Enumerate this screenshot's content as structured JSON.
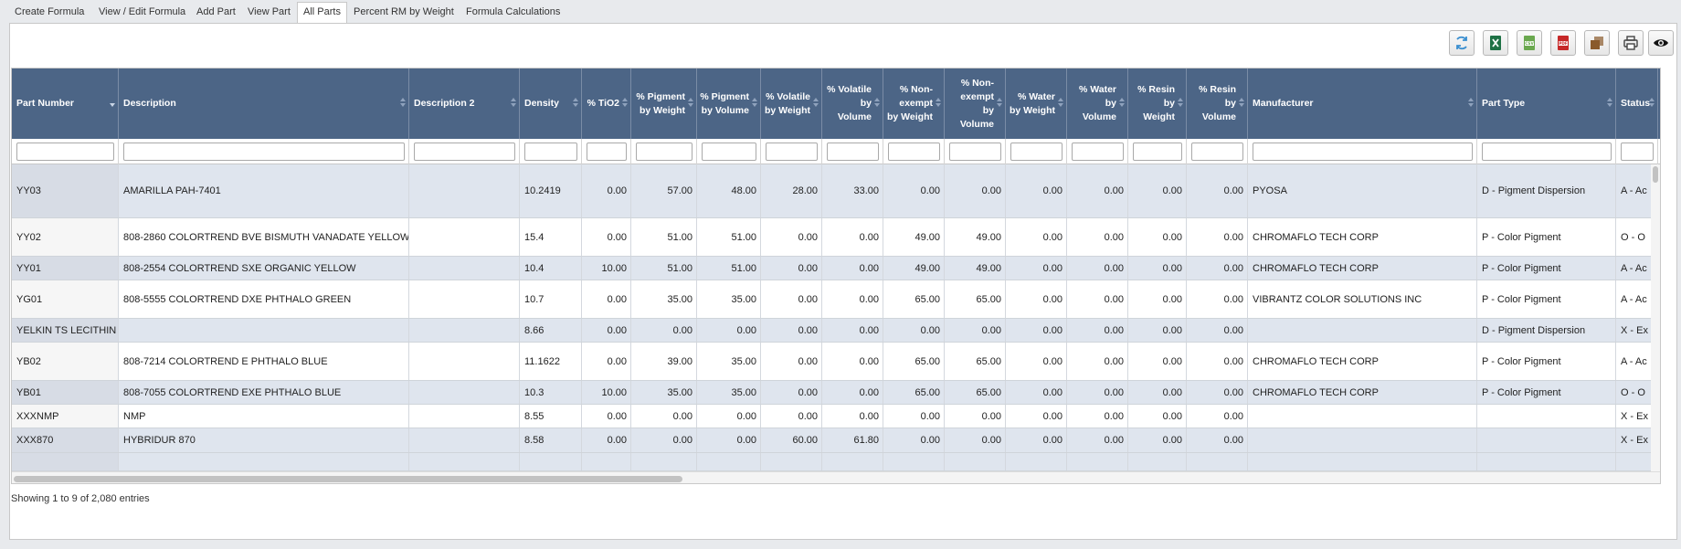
{
  "tabs": [
    {
      "label": "Create Formula",
      "active": false
    },
    {
      "label": "View / Edit Formula",
      "active": false
    },
    {
      "label": "Add Part",
      "active": false
    },
    {
      "label": "View Part",
      "active": false
    },
    {
      "label": "All Parts",
      "active": true
    },
    {
      "label": "Percent RM by Weight",
      "active": false
    },
    {
      "label": "Formula Calculations",
      "active": false
    }
  ],
  "toolbar": [
    {
      "name": "refresh-button",
      "icon": "refresh-icon",
      "color": "#3a8fd0"
    },
    {
      "name": "export-excel-button",
      "icon": "excel-icon",
      "color": "#1e7145"
    },
    {
      "name": "export-csv-button",
      "icon": "csv-icon",
      "color": "#6aa84f"
    },
    {
      "name": "export-pdf-button",
      "icon": "pdf-icon",
      "color": "#c62828"
    },
    {
      "name": "copy-button",
      "icon": "copy-icon",
      "color": "#8a5a2b"
    },
    {
      "name": "print-button",
      "icon": "print-icon",
      "color": "#444444"
    },
    {
      "name": "column-visibility-button",
      "icon": "eye-icon",
      "color": "#111111"
    }
  ],
  "table": {
    "columns": [
      {
        "key": "part_number",
        "label": "Part Number",
        "align": "left",
        "sorted": true
      },
      {
        "key": "description",
        "label": "Description",
        "align": "left"
      },
      {
        "key": "description2",
        "label": "Description 2",
        "align": "left"
      },
      {
        "key": "density",
        "label": "Density",
        "align": "left"
      },
      {
        "key": "tio2",
        "label": "% TiO2",
        "align": "right"
      },
      {
        "key": "pig_w",
        "label": "% Pigment by Weight",
        "align": "right"
      },
      {
        "key": "pig_v",
        "label": "% Pigment by Volume",
        "align": "right"
      },
      {
        "key": "vol_w",
        "label": "% Volatile by Weight",
        "align": "right"
      },
      {
        "key": "vol_v",
        "label": "% Volatile by Volume",
        "align": "right"
      },
      {
        "key": "nonex_w",
        "label": "% Non-exempt by Weight",
        "align": "right"
      },
      {
        "key": "nonex_v",
        "label": "% Non-exempt by Volume",
        "align": "right"
      },
      {
        "key": "water_w",
        "label": "% Water by Weight",
        "align": "right"
      },
      {
        "key": "water_v",
        "label": "% Water by Volume",
        "align": "right"
      },
      {
        "key": "resin_w",
        "label": "% Resin by Weight",
        "align": "right"
      },
      {
        "key": "resin_v",
        "label": "% Resin by Volume",
        "align": "right"
      },
      {
        "key": "manufacturer",
        "label": "Manufacturer",
        "align": "left"
      },
      {
        "key": "part_type",
        "label": "Part Type",
        "align": "left"
      },
      {
        "key": "status",
        "label": "Status",
        "align": "left"
      }
    ],
    "rows": [
      [
        "YY03",
        "AMARILLA PAH-7401",
        "",
        "10.2419",
        "0.00",
        "57.00",
        "48.00",
        "28.00",
        "33.00",
        "0.00",
        "0.00",
        "0.00",
        "0.00",
        "0.00",
        "0.00",
        "PYOSA",
        "D - Pigment Dispersion",
        "A - Ac"
      ],
      [
        "YY02",
        "808-2860 COLORTREND BVE BISMUTH VANADATE YELLOW",
        "",
        "15.4",
        "0.00",
        "51.00",
        "51.00",
        "0.00",
        "0.00",
        "49.00",
        "49.00",
        "0.00",
        "0.00",
        "0.00",
        "0.00",
        "CHROMAFLO TECH CORP",
        "P - Color Pigment",
        "O - O"
      ],
      [
        "YY01",
        "808-2554 COLORTREND SXE ORGANIC YELLOW",
        "",
        "10.4",
        "10.00",
        "51.00",
        "51.00",
        "0.00",
        "0.00",
        "49.00",
        "49.00",
        "0.00",
        "0.00",
        "0.00",
        "0.00",
        "CHROMAFLO TECH CORP",
        "P - Color Pigment",
        "A - Ac"
      ],
      [
        "YG01",
        "808-5555 COLORTREND DXE PHTHALO GREEN",
        "",
        "10.7",
        "0.00",
        "35.00",
        "35.00",
        "0.00",
        "0.00",
        "65.00",
        "65.00",
        "0.00",
        "0.00",
        "0.00",
        "0.00",
        "VIBRANTZ COLOR SOLUTIONS INC",
        "P - Color Pigment",
        "A - Ac"
      ],
      [
        "YELKIN TS LECITHIN",
        "",
        "",
        "8.66",
        "0.00",
        "0.00",
        "0.00",
        "0.00",
        "0.00",
        "0.00",
        "0.00",
        "0.00",
        "0.00",
        "0.00",
        "0.00",
        "",
        "D - Pigment Dispersion",
        "X - Ex"
      ],
      [
        "YB02",
        "808-7214 COLORTREND E PHTHALO BLUE",
        "",
        "11.1622",
        "0.00",
        "39.00",
        "35.00",
        "0.00",
        "0.00",
        "65.00",
        "65.00",
        "0.00",
        "0.00",
        "0.00",
        "0.00",
        "CHROMAFLO TECH CORP",
        "P - Color Pigment",
        "A - Ac"
      ],
      [
        "YB01",
        "808-7055 COLORTREND EXE PHTHALO BLUE",
        "",
        "10.3",
        "10.00",
        "35.00",
        "35.00",
        "0.00",
        "0.00",
        "65.00",
        "65.00",
        "0.00",
        "0.00",
        "0.00",
        "0.00",
        "CHROMAFLO TECH CORP",
        "P - Color Pigment",
        "O - O"
      ],
      [
        "XXXNMP",
        "NMP",
        "",
        "8.55",
        "0.00",
        "0.00",
        "0.00",
        "0.00",
        "0.00",
        "0.00",
        "0.00",
        "0.00",
        "0.00",
        "0.00",
        "0.00",
        "",
        "",
        "X - Ex"
      ],
      [
        "XXX870",
        "HYBRIDUR 870",
        "",
        "8.58",
        "0.00",
        "0.00",
        "0.00",
        "60.00",
        "61.80",
        "0.00",
        "0.00",
        "0.00",
        "0.00",
        "0.00",
        "0.00",
        "",
        "",
        "X - Ex"
      ]
    ]
  },
  "footer": {
    "info": "Showing 1 to 9 of 2,080 entries"
  }
}
